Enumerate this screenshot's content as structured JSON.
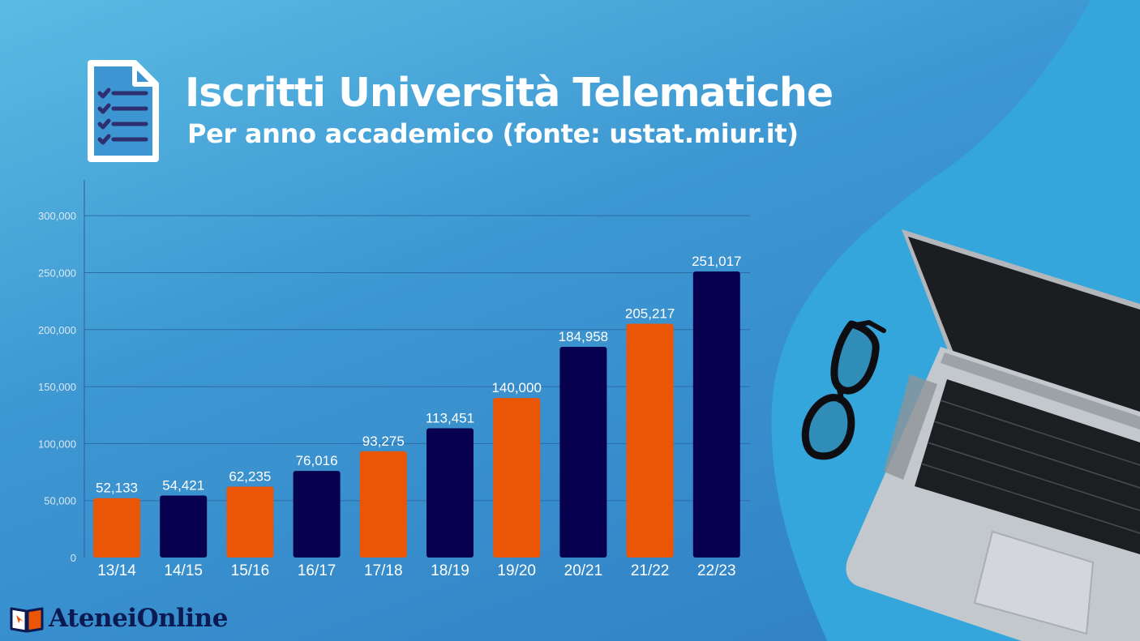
{
  "header": {
    "title": "Iscritti Università Telematiche",
    "subtitle": "Per anno accademico (fonte: ustat.miur.it)"
  },
  "logo": {
    "text": "AteneiOnline",
    "icon": "open-book-icon"
  },
  "decoration": {
    "laptop": "laptop-illustration",
    "glasses": "eyeglasses-illustration"
  },
  "colors": {
    "orange": "#ea5506",
    "navy": "#07004f",
    "label": "#ffffff",
    "tick": "#dbe8f5"
  },
  "chart_data": {
    "type": "bar",
    "title": "Iscritti Università Telematiche",
    "xlabel": "",
    "ylabel": "",
    "categories": [
      "13/14",
      "14/15",
      "15/16",
      "16/17",
      "17/18",
      "18/19",
      "19/20",
      "20/21",
      "21/22",
      "22/23"
    ],
    "values": [
      52133,
      54421,
      62235,
      76016,
      93275,
      113451,
      140000,
      184958,
      205217,
      251017
    ],
    "value_labels": [
      "52,133",
      "54,421",
      "62,235",
      "76,016",
      "93,275",
      "113,451",
      "140,000",
      "184,958",
      "205,217",
      "251,017"
    ],
    "bar_colors": [
      "#ea5506",
      "#07004f",
      "#ea5506",
      "#07004f",
      "#ea5506",
      "#07004f",
      "#ea5506",
      "#07004f",
      "#ea5506",
      "#07004f"
    ],
    "ylim": [
      0,
      330000
    ],
    "yticks": [
      0,
      50000,
      100000,
      150000,
      200000,
      250000,
      300000
    ],
    "ytick_labels": [
      "0",
      "50,000",
      "100,000",
      "150,000",
      "200,000",
      "250,000",
      "300,000"
    ],
    "grid": true,
    "legend": "none"
  }
}
